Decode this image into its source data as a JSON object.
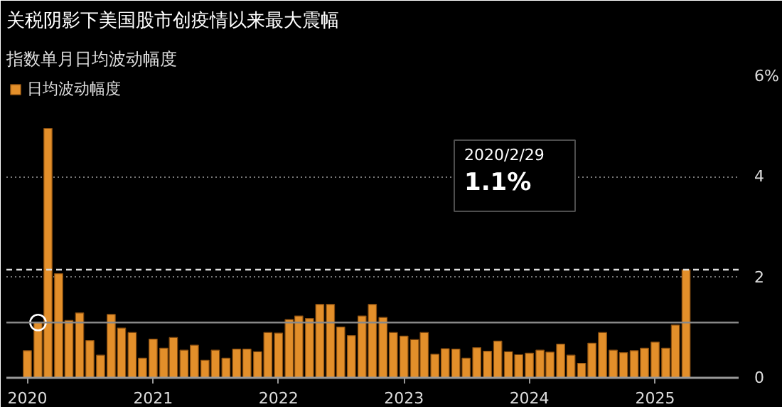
{
  "chart_data": {
    "type": "bar",
    "title": "关税阴影下美国股市创疫情以来最大震幅",
    "subtitle": "指数单月日均波动幅度",
    "x": [
      "2020-01",
      "2020-02",
      "2020-03",
      "2020-04",
      "2020-05",
      "2020-06",
      "2020-07",
      "2020-08",
      "2020-09",
      "2020-10",
      "2020-11",
      "2020-12",
      "2021-01",
      "2021-02",
      "2021-03",
      "2021-04",
      "2021-05",
      "2021-06",
      "2021-07",
      "2021-08",
      "2021-09",
      "2021-10",
      "2021-11",
      "2021-12",
      "2022-01",
      "2022-02",
      "2022-03",
      "2022-04",
      "2022-05",
      "2022-06",
      "2022-07",
      "2022-08",
      "2022-09",
      "2022-10",
      "2022-11",
      "2022-12",
      "2023-01",
      "2023-02",
      "2023-03",
      "2023-04",
      "2023-05",
      "2023-06",
      "2023-07",
      "2023-08",
      "2023-09",
      "2023-10",
      "2023-11",
      "2023-12",
      "2024-01",
      "2024-02",
      "2024-03",
      "2024-04",
      "2024-05",
      "2024-06",
      "2024-07",
      "2024-08",
      "2024-09",
      "2024-10",
      "2024-11",
      "2024-12",
      "2025-01",
      "2025-02",
      "2025-03",
      "2025-04"
    ],
    "series": [
      {
        "name": "日均波动幅度",
        "color": "#e38f2a",
        "values": [
          0.54,
          1.1,
          4.96,
          2.07,
          1.14,
          1.29,
          0.74,
          0.45,
          1.26,
          0.99,
          0.9,
          0.39,
          0.77,
          0.59,
          0.8,
          0.55,
          0.65,
          0.35,
          0.55,
          0.39,
          0.57,
          0.57,
          0.52,
          0.9,
          0.89,
          1.16,
          1.23,
          1.18,
          1.46,
          1.46,
          1.01,
          0.84,
          1.23,
          1.46,
          1.2,
          0.9,
          0.83,
          0.76,
          0.9,
          0.47,
          0.58,
          0.57,
          0.39,
          0.6,
          0.53,
          0.73,
          0.52,
          0.46,
          0.49,
          0.55,
          0.51,
          0.67,
          0.45,
          0.29,
          0.69,
          0.9,
          0.55,
          0.5,
          0.54,
          0.59,
          0.71,
          0.59,
          1.05,
          2.15
        ]
      },
      {
        "type": "scatter",
        "marker": "circle",
        "color": "#ffffff",
        "x": [
          "2020-02"
        ],
        "values": [
          1.1
        ]
      }
    ],
    "xlim": [
      "2019-11-01",
      "2025-09-01"
    ],
    "xticks": [
      "2020",
      "2021",
      "2022",
      "2023",
      "2024",
      "2025"
    ],
    "ylim": [
      0,
      6
    ],
    "yticks": [
      0,
      2,
      4,
      {
        "value": 6,
        "label": "6%"
      }
    ],
    "grid": "y",
    "legend": "top left",
    "ref_lines": [
      {
        "axis": "y",
        "value": 2.15,
        "color": "#dddddd",
        "line_style": "dashed"
      },
      {
        "axis": "y",
        "value": 1.1,
        "color": "#888888",
        "line_style": "solid"
      }
    ],
    "annotations": [
      "2020/2/29",
      "1.1%"
    ]
  }
}
